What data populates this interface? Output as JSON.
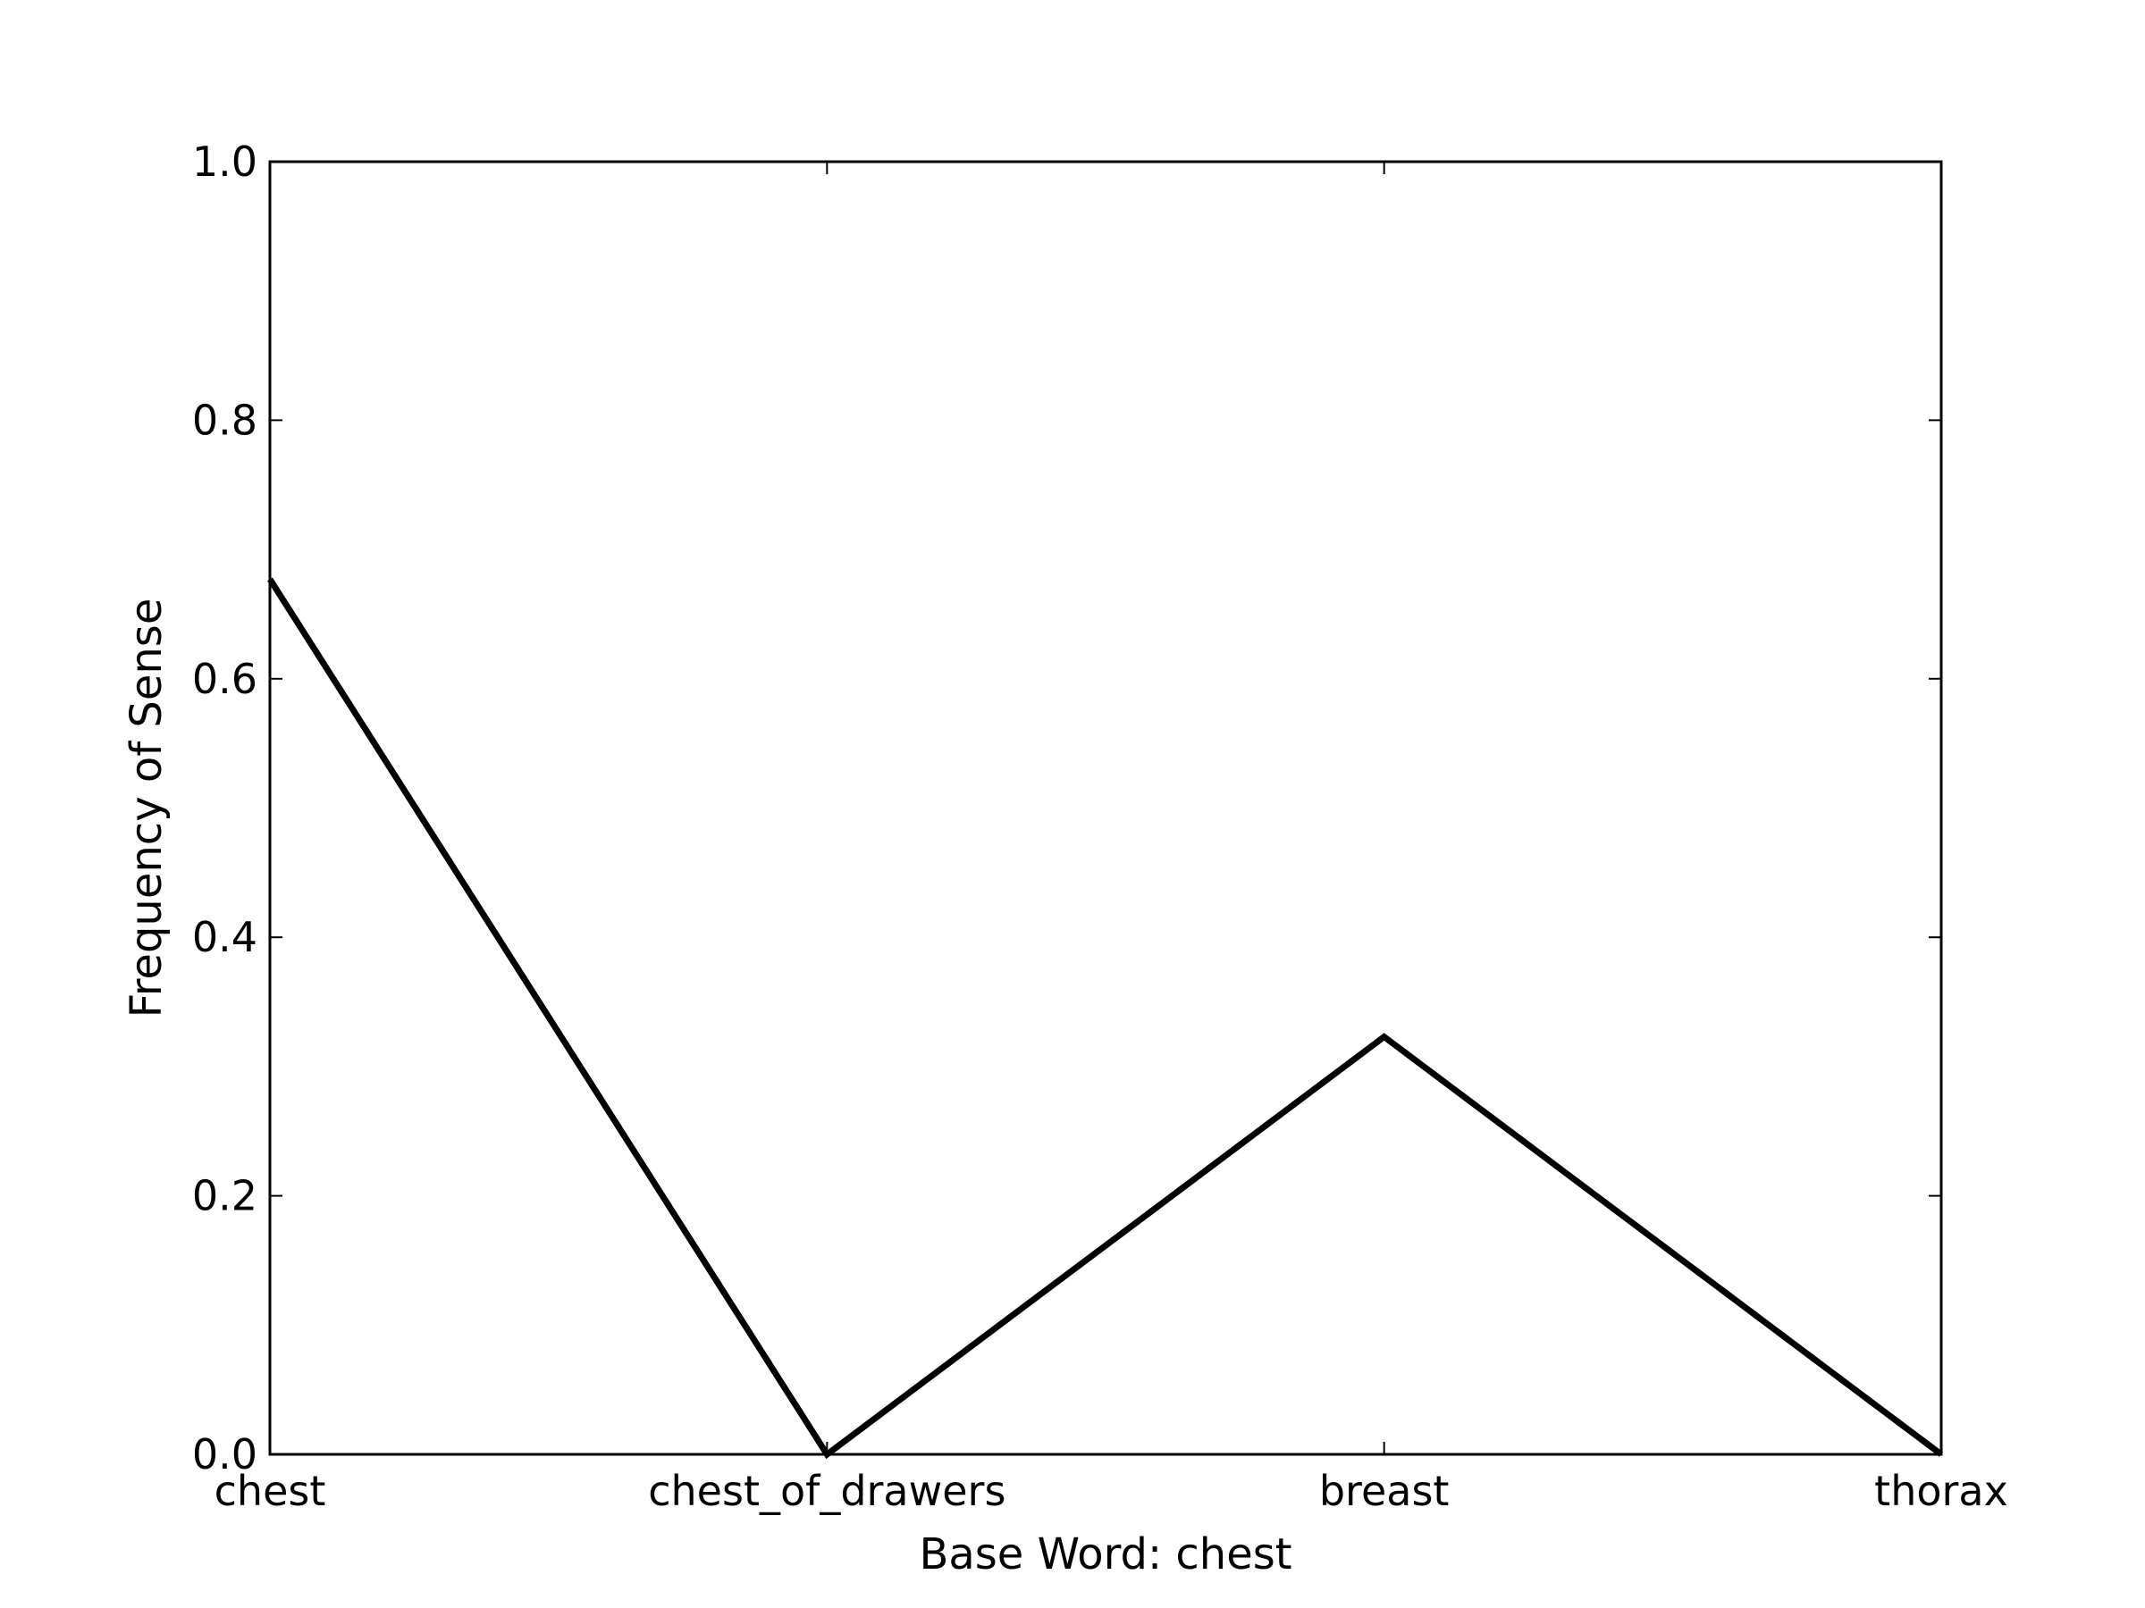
{
  "chart_data": {
    "type": "line",
    "categories": [
      "chest",
      "chest_of_drawers",
      "breast",
      "thorax"
    ],
    "series": [
      {
        "values": [
          0.677,
          0.0,
          0.323,
          0.0
        ],
        "color": "#000000"
      }
    ],
    "xlabel": "Base Word: chest",
    "ylabel": "Frequency of Sense",
    "ylim": [
      0.0,
      1.0
    ],
    "yticks": [
      "0.0",
      "0.2",
      "0.4",
      "0.6",
      "0.8",
      "1.0"
    ],
    "grid": false
  }
}
